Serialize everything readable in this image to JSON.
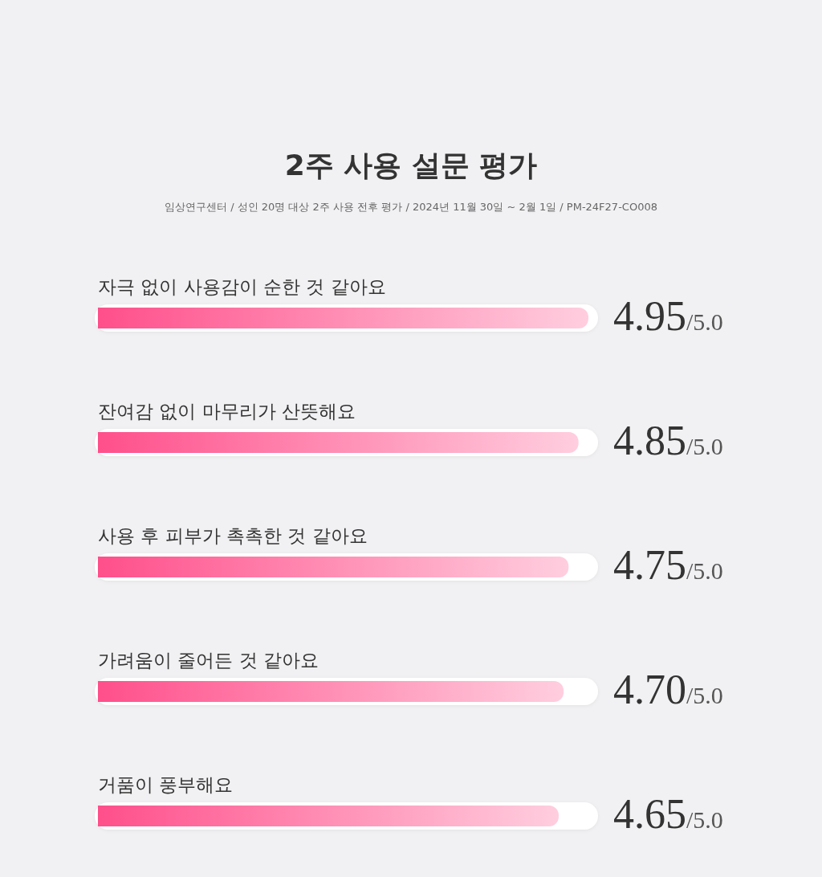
{
  "chart_data": {
    "type": "bar",
    "orientation": "horizontal",
    "title": "2주 사용 설문 평가",
    "subtitle": "임상연구센터 / 성인 20명 대상 2주 사용 전후 평가 / 2024년 11월 30일 ~ 2월 1일 / PM-24F27-CO008",
    "categories": [
      "자극 없이 사용감이 순한 것 같아요",
      "잔여감 없이 마무리가 산뜻해요",
      "사용 후 피부가 촉촉한 것 같아요",
      "가려움이 줄어든 것 같아요",
      "거품이 풍부해요"
    ],
    "values": [
      4.95,
      4.85,
      4.75,
      4.7,
      4.65
    ],
    "value_labels": [
      "4.95/5.0",
      "4.85/5.0",
      "4.75/5.0",
      "4.70/5.0",
      "4.65/5.0"
    ],
    "color": "#ff4f8b",
    "tick_labels": "y"
  }
}
